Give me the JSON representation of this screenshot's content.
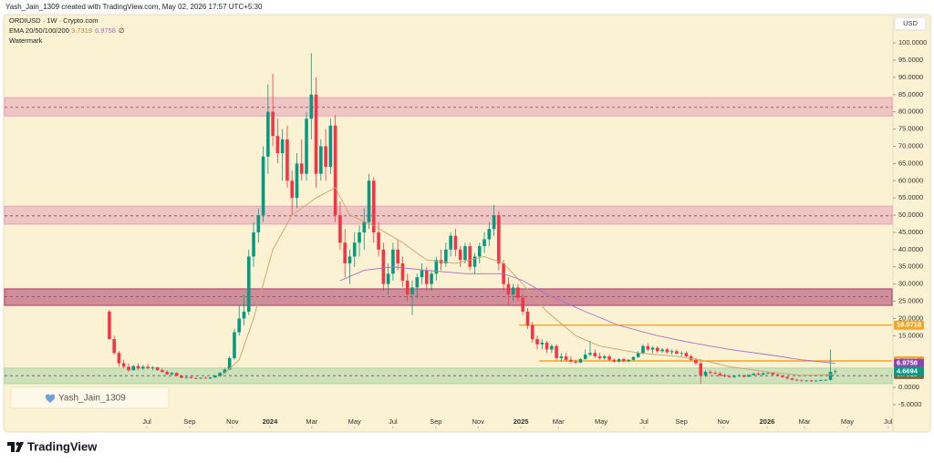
{
  "header": {
    "text": "Yash_Jain_1309 created with TradingView.com, May 02, 2026 17:57 UTC+5:30"
  },
  "legend": {
    "symbol": "ORDIUSD · 1W · Crypto.com",
    "indicator": "EMA 20/50/100/200",
    "empty": "∅",
    "watermark": "Watermark"
  },
  "watermark": {
    "text": "Yash_Jain_1309"
  },
  "footer": {
    "brand": "TradingView"
  },
  "chart_data": {
    "type": "candlestick",
    "currency": "USD",
    "up_color": "#089981",
    "down_color": "#f23645",
    "ylim": [
      -11.9,
      107.7
    ],
    "xlim": [
      -21.8,
      162.8
    ],
    "yticks": [
      {
        "value": 100,
        "label": "100.0000"
      },
      {
        "value": 95,
        "label": "95.0000"
      },
      {
        "value": 90,
        "label": "90.0000"
      },
      {
        "value": 85,
        "label": "85.0000"
      },
      {
        "value": 80,
        "label": "80.0000"
      },
      {
        "value": 75,
        "label": "75.0000"
      },
      {
        "value": 70,
        "label": "70.0000"
      },
      {
        "value": 65,
        "label": "65.0000"
      },
      {
        "value": 60,
        "label": "60.0000"
      },
      {
        "value": 55,
        "label": "55.0000"
      },
      {
        "value": 50,
        "label": "50.0000"
      },
      {
        "value": 45,
        "label": "45.0000"
      },
      {
        "value": 40,
        "label": "40.0000"
      },
      {
        "value": 35,
        "label": "35.0000"
      },
      {
        "value": 30,
        "label": "30.0000"
      },
      {
        "value": 25,
        "label": "25.0000"
      },
      {
        "value": 20,
        "label": "20.0000"
      },
      {
        "value": 15,
        "label": "15.0000"
      },
      {
        "value": 0,
        "label": "0.0000"
      },
      {
        "value": -5,
        "label": "-5.0000"
      }
    ],
    "xticks": [
      {
        "value": 7.8,
        "label": "Jul"
      },
      {
        "value": 16.7,
        "label": "Sep"
      },
      {
        "value": 25.6,
        "label": "Nov"
      },
      {
        "value": 33.4,
        "label": "2024"
      },
      {
        "value": 42.1,
        "label": "Mar"
      },
      {
        "value": 51.0,
        "label": "May"
      },
      {
        "value": 59.0,
        "label": "Jul"
      },
      {
        "value": 67.9,
        "label": "Sep"
      },
      {
        "value": 76.7,
        "label": "Nov"
      },
      {
        "value": 85.6,
        "label": "2025"
      },
      {
        "value": 93.4,
        "label": "Mar"
      },
      {
        "value": 102.3,
        "label": "May"
      },
      {
        "value": 111.2,
        "label": "Jul"
      },
      {
        "value": 119.0,
        "label": "Sep"
      },
      {
        "value": 127.7,
        "label": "Nov"
      },
      {
        "value": 136.8,
        "label": "2026"
      },
      {
        "value": 144.6,
        "label": "Mar"
      },
      {
        "value": 153.5,
        "label": "May"
      },
      {
        "value": 162.0,
        "label": "Jul"
      }
    ],
    "zones": [
      {
        "low": 78.8,
        "high": 84.1,
        "mid": 81.3,
        "color": "#e8a3b8"
      },
      {
        "low": 47.4,
        "high": 52.6,
        "mid": 49.8,
        "color": "#e8a3b8"
      },
      {
        "low": 23.8,
        "high": 28.6,
        "mid": 26.3,
        "color": "#b03a6e"
      },
      {
        "low": 1.1,
        "high": 5.6,
        "mid": 3.4,
        "color": "#a8d5a8"
      }
    ],
    "levels": [
      {
        "value": 18.0718,
        "x_start": 85.2,
        "color": "#f5a623"
      },
      {
        "value": 7.6809,
        "x_start": 89.4,
        "color": "#f5a623"
      }
    ],
    "ema_lines": [
      {
        "color": "#c9a46b",
        "x": [
          23,
          27,
          30,
          34,
          38,
          43,
          47,
          50,
          55,
          61,
          66,
          72,
          78,
          82,
          86,
          91,
          97,
          102,
          110,
          118,
          123,
          129,
          137,
          144,
          151
        ],
        "values": [
          3,
          8,
          20,
          40,
          50,
          55,
          58,
          50,
          47,
          42,
          37,
          36,
          38,
          36,
          30,
          22,
          15,
          12,
          10,
          9,
          8,
          6,
          4.5,
          3.5,
          3.7319
        ]
      },
      {
        "color": "#a66fc9",
        "x": [
          48,
          53,
          59,
          66,
          74,
          82,
          86,
          91,
          99,
          106,
          114,
          121,
          129,
          137,
          144,
          151
        ],
        "values": [
          31,
          34,
          35,
          34,
          33,
          33,
          31,
          27,
          22,
          18,
          15,
          13,
          11,
          9.5,
          8,
          6.9758
        ]
      }
    ],
    "candles": [
      [
        22,
        22.5,
        14,
        14
      ],
      [
        14,
        15,
        9.5,
        10
      ],
      [
        10,
        10.5,
        6,
        7
      ],
      [
        7,
        8,
        5.5,
        6
      ],
      [
        6,
        7,
        4.5,
        5
      ],
      [
        5,
        6.5,
        4.8,
        6.2
      ],
      [
        6.2,
        7,
        5,
        5.5
      ],
      [
        5.5,
        6.5,
        5,
        6
      ],
      [
        6,
        6.8,
        5.2,
        5.6
      ],
      [
        5.6,
        6.2,
        5,
        5.8
      ],
      [
        5.8,
        6,
        4.8,
        5
      ],
      [
        5,
        5.5,
        4.2,
        4.5
      ],
      [
        4.5,
        5,
        3.6,
        3.8
      ],
      [
        3.8,
        4.5,
        3.5,
        4.2
      ],
      [
        4.2,
        4.4,
        3.2,
        3.4
      ],
      [
        3.4,
        3.6,
        2.6,
        2.8
      ],
      [
        2.8,
        3.2,
        2.5,
        3
      ],
      [
        3,
        3.3,
        2.6,
        2.7
      ],
      [
        2.7,
        3,
        2.4,
        2.6
      ],
      [
        2.6,
        2.9,
        2.4,
        2.8
      ],
      [
        2.8,
        3.1,
        2.5,
        2.6
      ],
      [
        2.6,
        3,
        2.4,
        2.9
      ],
      [
        2.9,
        3.6,
        2.7,
        3.4
      ],
      [
        3.4,
        4.5,
        3.2,
        4.2
      ],
      [
        4.2,
        5.5,
        4,
        5.2
      ],
      [
        5.2,
        9,
        5,
        8.5
      ],
      [
        8.5,
        17,
        8,
        16
      ],
      [
        16,
        24,
        15,
        20
      ],
      [
        20,
        27,
        18,
        22
      ],
      [
        22,
        40,
        21,
        38
      ],
      [
        38,
        48,
        35,
        45
      ],
      [
        45,
        52,
        42,
        50
      ],
      [
        50,
        70,
        48,
        67
      ],
      [
        67,
        88,
        62,
        80
      ],
      [
        80,
        91,
        70,
        73
      ],
      [
        73,
        78,
        65,
        68
      ],
      [
        68,
        75,
        60,
        72
      ],
      [
        72,
        76,
        58,
        60
      ],
      [
        60,
        63,
        50,
        55
      ],
      [
        55,
        68,
        52,
        65
      ],
      [
        65,
        72,
        60,
        62
      ],
      [
        62,
        80,
        60,
        78
      ],
      [
        78,
        97,
        72,
        85
      ],
      [
        85,
        90,
        58,
        62
      ],
      [
        62,
        72,
        60,
        70
      ],
      [
        70,
        75,
        60,
        64
      ],
      [
        64,
        78,
        62,
        76
      ],
      [
        76,
        79,
        48,
        50
      ],
      [
        50,
        54,
        40,
        42
      ],
      [
        42,
        46,
        32,
        36
      ],
      [
        36,
        40,
        30,
        38
      ],
      [
        38,
        45,
        35,
        42
      ],
      [
        42,
        47,
        38,
        45
      ],
      [
        45,
        52,
        40,
        48
      ],
      [
        48,
        62,
        46,
        60
      ],
      [
        60,
        61,
        42,
        45
      ],
      [
        45,
        48,
        38,
        40
      ],
      [
        40,
        42,
        28,
        30
      ],
      [
        30,
        36,
        27,
        33
      ],
      [
        33,
        42,
        31,
        40
      ],
      [
        40,
        43,
        34,
        36
      ],
      [
        36,
        38,
        29,
        31
      ],
      [
        31,
        33,
        25,
        27
      ],
      [
        27,
        31,
        21,
        29
      ],
      [
        29,
        33,
        26,
        32
      ],
      [
        32,
        36,
        30,
        34
      ],
      [
        34,
        35,
        28,
        30
      ],
      [
        30,
        34,
        28,
        33
      ],
      [
        33,
        38,
        31,
        37
      ],
      [
        37,
        40,
        34,
        36
      ],
      [
        36,
        42,
        35,
        40
      ],
      [
        40,
        45,
        38,
        44
      ],
      [
        44,
        46,
        38,
        40
      ],
      [
        40,
        41,
        35,
        37
      ],
      [
        37,
        42,
        36,
        41
      ],
      [
        41,
        42,
        34,
        35
      ],
      [
        35,
        39,
        33,
        38
      ],
      [
        38,
        42,
        36,
        41
      ],
      [
        41,
        45,
        39,
        43
      ],
      [
        43,
        48,
        41,
        46
      ],
      [
        46,
        53,
        44,
        50
      ],
      [
        50,
        51,
        34,
        36
      ],
      [
        36,
        37,
        28,
        30
      ],
      [
        30,
        32,
        24,
        27
      ],
      [
        27,
        30,
        25,
        29
      ],
      [
        29,
        30,
        25,
        26
      ],
      [
        26,
        27,
        21,
        22
      ],
      [
        22,
        23,
        17,
        18
      ],
      [
        18,
        19,
        13,
        14
      ],
      [
        14,
        15,
        11,
        12.5
      ],
      [
        12.5,
        14,
        11,
        13
      ],
      [
        13,
        13.5,
        10,
        11
      ],
      [
        11,
        12.5,
        10,
        12
      ],
      [
        12,
        12.5,
        8,
        8.5
      ],
      [
        8.5,
        10,
        7.5,
        9
      ],
      [
        9,
        10,
        7.5,
        8
      ],
      [
        8,
        9,
        7,
        7.5
      ],
      [
        7.5,
        8,
        6.8,
        7.2
      ],
      [
        7.2,
        8.5,
        7,
        8.2
      ],
      [
        8.2,
        11,
        8,
        9.5
      ],
      [
        9.5,
        13.5,
        9,
        10
      ],
      [
        10,
        11,
        8.5,
        9
      ],
      [
        9,
        10,
        8,
        8.5
      ],
      [
        8.5,
        9.5,
        8,
        9
      ],
      [
        9,
        9.5,
        7.5,
        8
      ],
      [
        8,
        8.5,
        7.2,
        7.5
      ],
      [
        7.5,
        8.5,
        7.2,
        8.2
      ],
      [
        8.2,
        8.6,
        7.3,
        7.6
      ],
      [
        7.6,
        8.2,
        7.3,
        8
      ],
      [
        8,
        9,
        7.6,
        8.8
      ],
      [
        8.8,
        10.5,
        8.5,
        10
      ],
      [
        10,
        12.5,
        9.5,
        12
      ],
      [
        12,
        12.8,
        10.5,
        11
      ],
      [
        11,
        12,
        10,
        11.5
      ],
      [
        11.5,
        12,
        10,
        10.5
      ],
      [
        10.5,
        11.5,
        10,
        11
      ],
      [
        11,
        11.5,
        9.8,
        10.2
      ],
      [
        10.2,
        11,
        9.5,
        10.5
      ],
      [
        10.5,
        11,
        9.5,
        9.8
      ],
      [
        9.8,
        10.5,
        9,
        10
      ],
      [
        10,
        10.5,
        8.8,
        9
      ],
      [
        9,
        9.5,
        7.8,
        8
      ],
      [
        8,
        8.5,
        6.5,
        7
      ],
      [
        7,
        7.5,
        1,
        3.5
      ],
      [
        3.5,
        5,
        3,
        4.5
      ],
      [
        4.5,
        5,
        3.8,
        4.2
      ],
      [
        4.2,
        4.8,
        3.6,
        4
      ],
      [
        4,
        4.5,
        3.2,
        3.5
      ],
      [
        3.5,
        4,
        3,
        3.2
      ],
      [
        3.2,
        3.6,
        2.8,
        3
      ],
      [
        3,
        3.5,
        2.8,
        3.3
      ],
      [
        3.3,
        3.8,
        3,
        3.5
      ],
      [
        3.5,
        3.7,
        2.9,
        3.1
      ],
      [
        3.1,
        3.8,
        3,
        3.6
      ],
      [
        3.6,
        4.2,
        3.4,
        4
      ],
      [
        4,
        4.4,
        3.5,
        3.7
      ],
      [
        3.7,
        4.3,
        3.5,
        4.1
      ],
      [
        4.1,
        4.6,
        3.8,
        4.2
      ],
      [
        4.2,
        4.5,
        3.5,
        3.7
      ],
      [
        3.7,
        4,
        3.2,
        3.4
      ],
      [
        3.4,
        3.6,
        2.8,
        3
      ],
      [
        3,
        3.2,
        2.4,
        2.6
      ],
      [
        2.6,
        2.8,
        2,
        2.2
      ],
      [
        2.2,
        2.5,
        1.9,
        2
      ],
      [
        2,
        2.3,
        1.7,
        1.9
      ],
      [
        1.9,
        2.2,
        1.7,
        2
      ],
      [
        2,
        2.2,
        1.6,
        1.8
      ],
      [
        1.8,
        2.1,
        1.6,
        2
      ],
      [
        2,
        2.3,
        1.8,
        2.1
      ],
      [
        2.1,
        2.4,
        1.9,
        2.2
      ],
      [
        2.2,
        11,
        2,
        4.5
      ],
      [
        4.5,
        5.2,
        4,
        4.6694
      ]
    ]
  }
}
